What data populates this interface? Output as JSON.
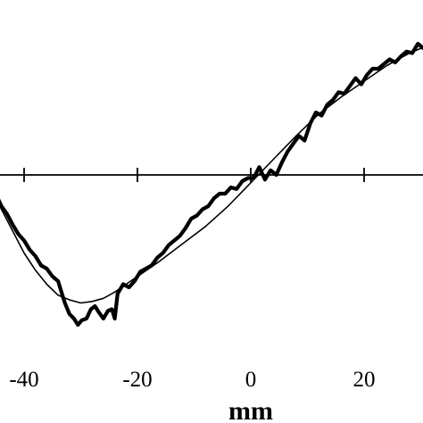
{
  "chart_data": {
    "type": "line",
    "title": "",
    "xlabel": "mm",
    "ylabel": "",
    "xlim": [
      -48.5,
      35.5
    ],
    "ylim": [
      -1.0,
      1.0
    ],
    "x_ticks": [
      -40,
      -20,
      0,
      20
    ],
    "x_tick_labels": [
      "-40",
      "-20",
      "0",
      "20"
    ],
    "grid": false,
    "legend": "none",
    "series": [
      {
        "style": "thin-smooth",
        "x": [
          -47.5,
          -46.0,
          -44.0,
          -42.0,
          -40.0,
          -38.0,
          -36.0,
          -34.0,
          -32.0,
          -30.0,
          -28.0,
          -26.0,
          -24.0,
          -22.0,
          -20.0,
          -16.0,
          -12.0,
          -8.0,
          -4.0,
          0.0,
          4.0,
          8.0,
          12.0,
          16.0,
          20.0,
          24.0,
          28.0,
          30.0,
          32.0,
          35.0
        ],
        "y": [
          0.0,
          -0.08,
          -0.22,
          -0.36,
          -0.5,
          -0.61,
          -0.7,
          -0.77,
          -0.8,
          -0.82,
          -0.81,
          -0.79,
          -0.75,
          -0.7,
          -0.65,
          -0.55,
          -0.44,
          -0.33,
          -0.2,
          -0.05,
          0.1,
          0.25,
          0.39,
          0.5,
          0.6,
          0.7,
          0.78,
          0.81,
          0.83,
          0.83
        ]
      },
      {
        "style": "thick-noisy",
        "x": [
          -47.5,
          -46.5,
          -45.8,
          -45.0,
          -44.0,
          -43.0,
          -42.0,
          -41.0,
          -40.0,
          -39.0,
          -38.0,
          -37.0,
          -36.0,
          -35.0,
          -34.0,
          -33.5,
          -32.8,
          -32.0,
          -31.2,
          -30.5,
          -29.8,
          -29.0,
          -28.2,
          -27.5,
          -26.8,
          -26.0,
          -25.2,
          -24.5,
          -24.0,
          -23.5,
          -22.5,
          -21.5,
          -20.5,
          -19.5,
          -18.5,
          -17.5,
          -16.5,
          -15.5,
          -14.5,
          -13.5,
          -12.5,
          -11.5,
          -10.5,
          -9.5,
          -8.5,
          -7.5,
          -6.5,
          -5.5,
          -4.5,
          -3.5,
          -2.5,
          -1.5,
          -0.5,
          0.5,
          1.5,
          2.5,
          3.5,
          4.5,
          5.5,
          6.5,
          7.5,
          8.5,
          9.5,
          10.5,
          11.5,
          12.5,
          13.5,
          14.5,
          15.5,
          16.5,
          17.5,
          18.5,
          19.5,
          20.5,
          21.5,
          22.5,
          23.5,
          24.5,
          25.5,
          26.5,
          27.5,
          28.5,
          29.5,
          30.5,
          31.5,
          32.5,
          33.0,
          34.0
        ],
        "y": [
          0.0,
          0.0,
          -0.01,
          -0.12,
          -0.2,
          -0.25,
          -0.32,
          -0.38,
          -0.42,
          -0.48,
          -0.52,
          -0.58,
          -0.6,
          -0.65,
          -0.68,
          -0.74,
          -0.82,
          -0.89,
          -0.92,
          -0.96,
          -0.93,
          -0.92,
          -0.86,
          -0.84,
          -0.88,
          -0.92,
          -0.87,
          -0.86,
          -0.92,
          -0.76,
          -0.7,
          -0.72,
          -0.68,
          -0.62,
          -0.6,
          -0.58,
          -0.53,
          -0.5,
          -0.45,
          -0.42,
          -0.39,
          -0.34,
          -0.28,
          -0.26,
          -0.22,
          -0.2,
          -0.15,
          -0.12,
          -0.12,
          -0.08,
          -0.09,
          -0.04,
          -0.02,
          -0.02,
          0.05,
          -0.03,
          0.03,
          0.0,
          0.08,
          0.15,
          0.2,
          0.25,
          0.22,
          0.33,
          0.4,
          0.38,
          0.45,
          0.48,
          0.53,
          0.52,
          0.57,
          0.62,
          0.58,
          0.64,
          0.68,
          0.68,
          0.71,
          0.74,
          0.72,
          0.76,
          0.79,
          0.78,
          0.84,
          0.81,
          0.86,
          0.88,
          0.94,
          0.92
        ]
      }
    ]
  }
}
